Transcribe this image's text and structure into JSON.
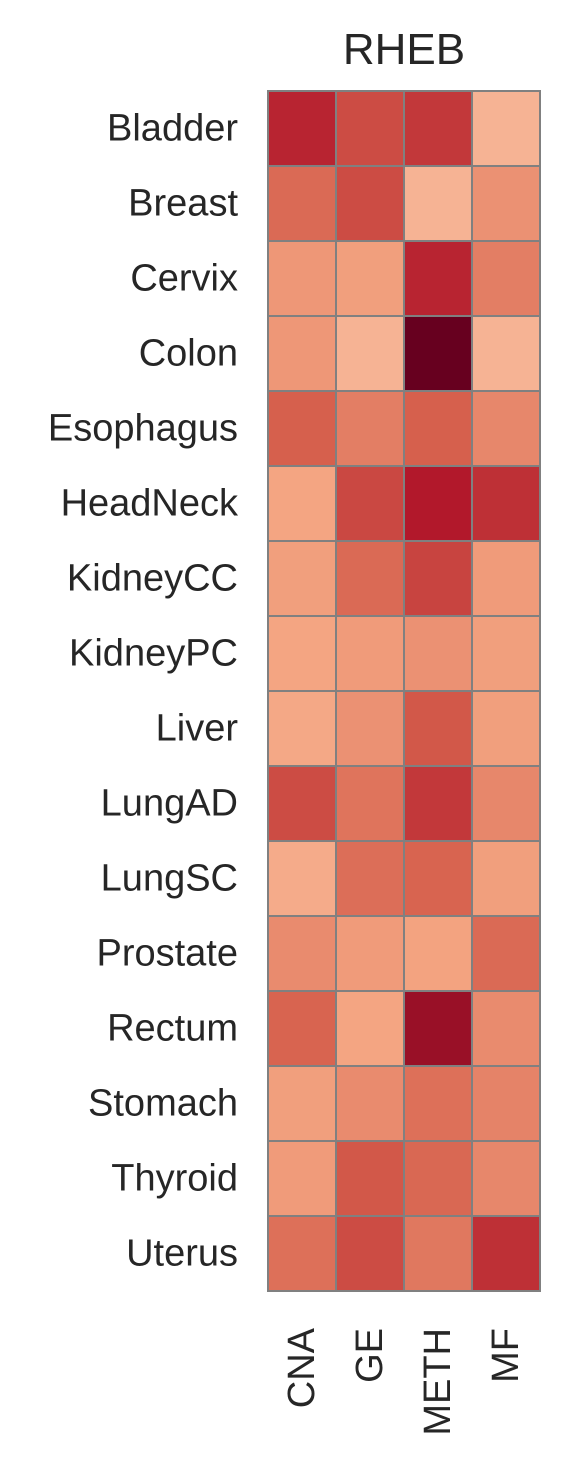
{
  "chart_data": {
    "type": "heatmap",
    "title": "RHEB",
    "rows": [
      "Bladder",
      "Breast",
      "Cervix",
      "Colon",
      "Esophagus",
      "HeadNeck",
      "KidneyCC",
      "KidneyPC",
      "Liver",
      "LungAD",
      "LungSC",
      "Prostate",
      "Rectum",
      "Stomach",
      "Thyroid",
      "Uterus"
    ],
    "columns": [
      "CNA",
      "GE",
      "METH",
      "MF"
    ],
    "values": [
      [
        0.85,
        0.75,
        0.8,
        0.2
      ],
      [
        0.65,
        0.75,
        0.2,
        0.45
      ],
      [
        0.42,
        0.38,
        0.85,
        0.55
      ],
      [
        0.42,
        0.2,
        1.0,
        0.2
      ],
      [
        0.7,
        0.55,
        0.7,
        0.5
      ],
      [
        0.35,
        0.76,
        0.88,
        0.82
      ],
      [
        0.38,
        0.65,
        0.77,
        0.4
      ],
      [
        0.35,
        0.4,
        0.45,
        0.38
      ],
      [
        0.32,
        0.45,
        0.72,
        0.38
      ],
      [
        0.75,
        0.6,
        0.8,
        0.5
      ],
      [
        0.28,
        0.63,
        0.68,
        0.38
      ],
      [
        0.48,
        0.4,
        0.36,
        0.65
      ],
      [
        0.68,
        0.35,
        0.92,
        0.48
      ],
      [
        0.38,
        0.48,
        0.62,
        0.52
      ],
      [
        0.4,
        0.72,
        0.66,
        0.5
      ],
      [
        0.62,
        0.75,
        0.58,
        0.82
      ]
    ],
    "colormap": {
      "low": "#f9c5ab",
      "mid1": "#f4a582",
      "mid2": "#d6604d",
      "high1": "#b2182b",
      "high2": "#67001f"
    },
    "cell_border_color": "#808080",
    "colorbar": false,
    "grid": false
  }
}
